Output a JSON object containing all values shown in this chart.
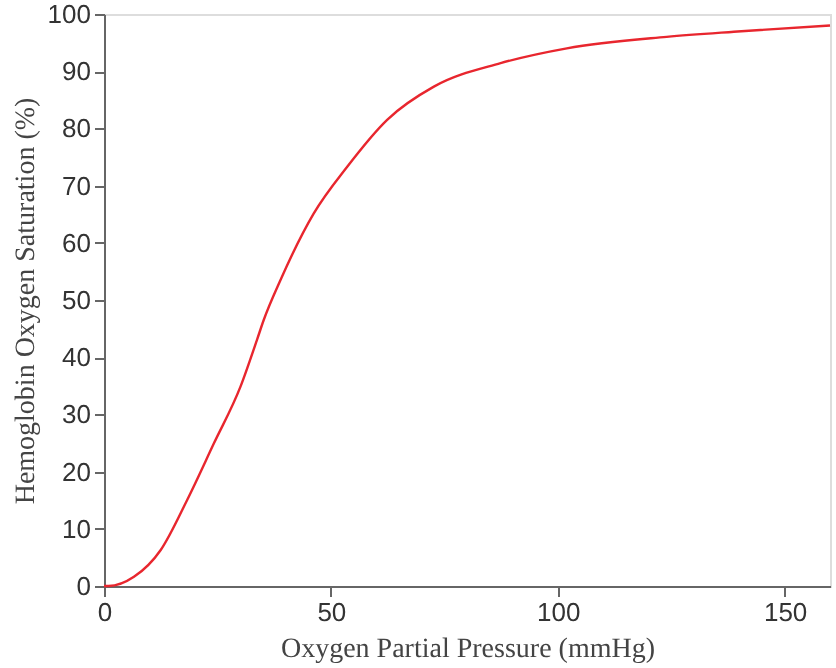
{
  "chart_data": {
    "type": "line",
    "xlabel": "Oxygen Partial Pressure (mmHg)",
    "ylabel": "Hemoglobin Oxygen Saturation (%)",
    "x": [
      0,
      1,
      6.6,
      12.5,
      18.3,
      24.2,
      30.1,
      33.7,
      35.2,
      38.9,
      46.2,
      53.6,
      62.4,
      72.7,
      87.4,
      102,
      124,
      138.8,
      160
    ],
    "series": [
      {
        "color": "#e8262e",
        "values": [
          0,
          0,
          1.6,
          6.3,
          15,
          24.9,
          34.9,
          43,
          46.5,
          53.5,
          65.1,
          73.3,
          81.5,
          87.3,
          91.4,
          94,
          96,
          96.9,
          98
        ]
      }
    ],
    "xlim": [
      0,
      160
    ],
    "xticks": [
      0,
      50,
      100,
      150
    ],
    "ylim": [
      0,
      100
    ],
    "yticks": [
      0,
      10,
      20,
      30,
      40,
      50,
      60,
      70,
      80,
      90,
      100
    ],
    "grid": false,
    "marker": "none",
    "line_style": "solid"
  }
}
